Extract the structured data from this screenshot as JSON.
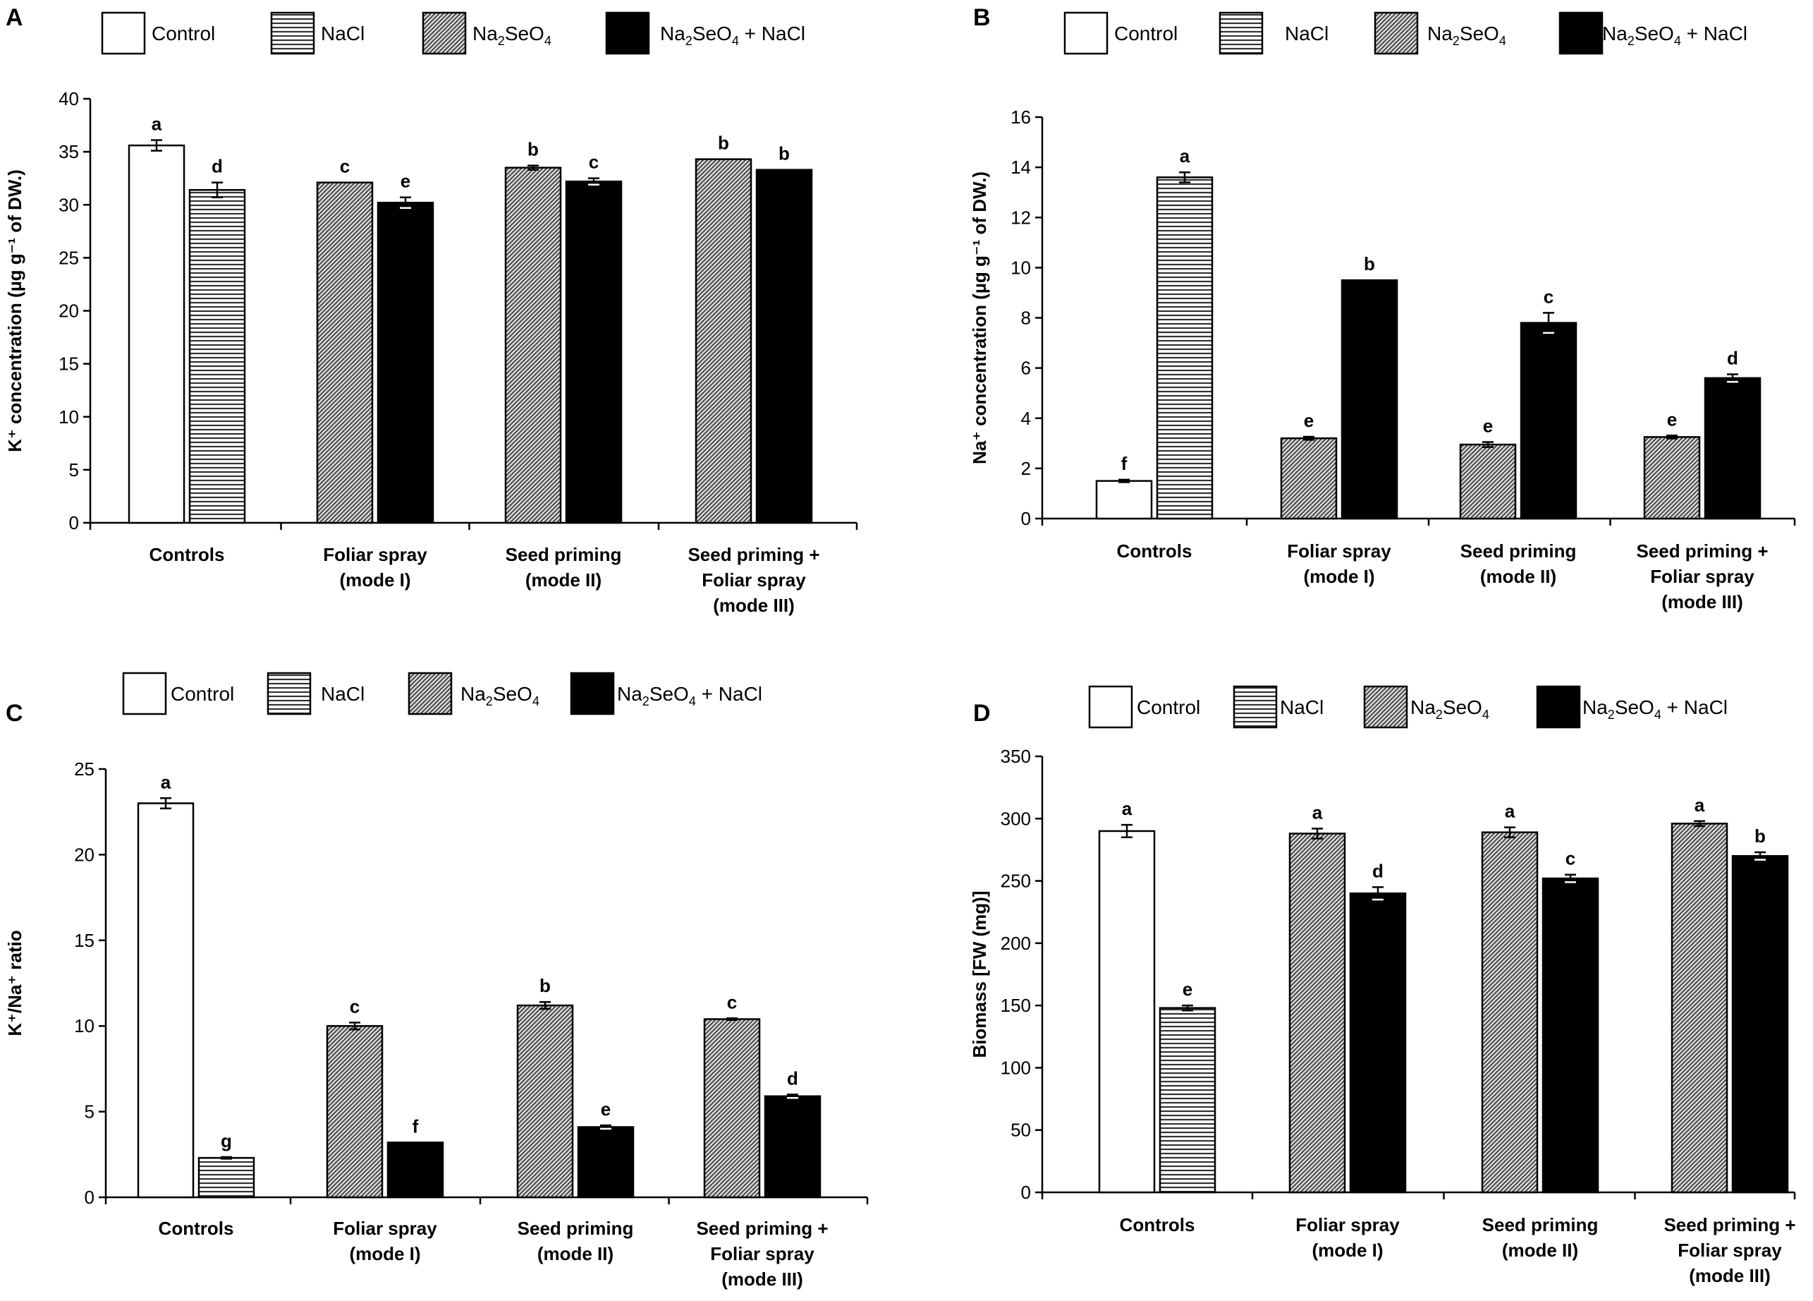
{
  "colors": {
    "control": "#ffffff",
    "nacl_line": "#333333",
    "naseo4_line": "#555555",
    "combined": "#000000",
    "axis": "#000000"
  },
  "legend": [
    {
      "key": "control",
      "label": "Control",
      "pattern": "white"
    },
    {
      "key": "nacl",
      "label": "NaCl",
      "pattern": "hlines"
    },
    {
      "key": "naseo4",
      "label_parts": [
        "Na",
        "2",
        "SeO",
        "4",
        ""
      ],
      "pattern": "diag"
    },
    {
      "key": "combined",
      "label_parts": [
        "Na",
        "2",
        "SeO",
        "4",
        " + NaCl"
      ],
      "pattern": "black"
    }
  ],
  "chart_data": [
    {
      "panel": "A",
      "type": "bar",
      "ylabel": "K⁺ concentration (µg g⁻¹ of DW.)",
      "ylim": [
        0,
        40
      ],
      "yticks": [
        0,
        5,
        10,
        15,
        20,
        25,
        30,
        35,
        40
      ],
      "groups": [
        {
          "label_lines": [
            "Controls"
          ],
          "bars": [
            {
              "series": "control",
              "value": 35.6,
              "error": 0.5,
              "letter": "a"
            },
            {
              "series": "nacl",
              "value": 31.4,
              "error": 0.7,
              "letter": "d"
            }
          ]
        },
        {
          "label_lines": [
            "Foliar spray",
            "(mode I)"
          ],
          "bars": [
            {
              "series": "naseo4",
              "value": 32.1,
              "error": 0,
              "letter": "c"
            },
            {
              "series": "combined",
              "value": 30.2,
              "error": 0.5,
              "letter": "e"
            }
          ]
        },
        {
          "label_lines": [
            "Seed priming",
            "(mode II)"
          ],
          "bars": [
            {
              "series": "naseo4",
              "value": 33.5,
              "error": 0.2,
              "letter": "b"
            },
            {
              "series": "combined",
              "value": 32.2,
              "error": 0.3,
              "letter": "c"
            }
          ]
        },
        {
          "label_lines": [
            "Seed priming +",
            "Foliar spray",
            "(mode III)"
          ],
          "bars": [
            {
              "series": "naseo4",
              "value": 34.3,
              "error": 0,
              "letter": "b"
            },
            {
              "series": "combined",
              "value": 33.3,
              "error": 0,
              "letter": "b"
            }
          ]
        }
      ]
    },
    {
      "panel": "B",
      "type": "bar",
      "ylabel": "Na⁺ concentration (µg g⁻¹ of DW.)",
      "ylim": [
        0,
        16
      ],
      "yticks": [
        0,
        2,
        4,
        6,
        8,
        10,
        12,
        14,
        16
      ],
      "groups": [
        {
          "label_lines": [
            "Controls"
          ],
          "bars": [
            {
              "series": "control",
              "value": 1.5,
              "error": 0.05,
              "letter": "f"
            },
            {
              "series": "nacl",
              "value": 13.6,
              "error": 0.2,
              "letter": "a"
            }
          ]
        },
        {
          "label_lines": [
            "Foliar spray",
            "(mode I)"
          ],
          "bars": [
            {
              "series": "naseo4",
              "value": 3.2,
              "error": 0.06,
              "letter": "e"
            },
            {
              "series": "combined",
              "value": 9.5,
              "error": 0,
              "letter": "b"
            }
          ]
        },
        {
          "label_lines": [
            "Seed priming",
            "(mode II)"
          ],
          "bars": [
            {
              "series": "naseo4",
              "value": 2.95,
              "error": 0.1,
              "letter": "e"
            },
            {
              "series": "combined",
              "value": 7.8,
              "error": 0.4,
              "letter": "c"
            }
          ]
        },
        {
          "label_lines": [
            "Seed priming +",
            "Foliar spray",
            "(mode III)"
          ],
          "bars": [
            {
              "series": "naseo4",
              "value": 3.25,
              "error": 0.06,
              "letter": "e"
            },
            {
              "series": "combined",
              "value": 5.6,
              "error": 0.15,
              "letter": "d"
            }
          ]
        }
      ]
    },
    {
      "panel": "C",
      "type": "bar",
      "ylabel": "K⁺/Na⁺ ratio",
      "ylim": [
        0,
        25
      ],
      "yticks": [
        0,
        5,
        10,
        15,
        20,
        25
      ],
      "groups": [
        {
          "label_lines": [
            "Controls"
          ],
          "bars": [
            {
              "series": "control",
              "value": 23.0,
              "error": 0.3,
              "letter": "a"
            },
            {
              "series": "nacl",
              "value": 2.3,
              "error": 0.05,
              "letter": "g"
            }
          ]
        },
        {
          "label_lines": [
            "Foliar spray",
            "(mode I)"
          ],
          "bars": [
            {
              "series": "naseo4",
              "value": 10.0,
              "error": 0.2,
              "letter": "c"
            },
            {
              "series": "combined",
              "value": 3.2,
              "error": 0,
              "letter": "f"
            }
          ]
        },
        {
          "label_lines": [
            "Seed priming",
            "(mode II)"
          ],
          "bars": [
            {
              "series": "naseo4",
              "value": 11.2,
              "error": 0.2,
              "letter": "b"
            },
            {
              "series": "combined",
              "value": 4.1,
              "error": 0.1,
              "letter": "e"
            }
          ]
        },
        {
          "label_lines": [
            "Seed priming +",
            "Foliar spray",
            "(mode III)"
          ],
          "bars": [
            {
              "series": "naseo4",
              "value": 10.4,
              "error": 0.05,
              "letter": "c"
            },
            {
              "series": "combined",
              "value": 5.9,
              "error": 0.1,
              "letter": "d"
            }
          ]
        }
      ]
    },
    {
      "panel": "D",
      "type": "bar",
      "ylabel": "Biomass [FW (mg)]",
      "ylim": [
        0,
        350
      ],
      "yticks": [
        0,
        50,
        100,
        150,
        200,
        250,
        300,
        350
      ],
      "groups": [
        {
          "label_lines": [
            "Controls"
          ],
          "bars": [
            {
              "series": "control",
              "value": 290,
              "error": 5,
              "letter": "a"
            },
            {
              "series": "nacl",
              "value": 148,
              "error": 2,
              "letter": "e"
            }
          ]
        },
        {
          "label_lines": [
            "Foliar spray",
            "(mode I)"
          ],
          "bars": [
            {
              "series": "naseo4",
              "value": 288,
              "error": 4,
              "letter": "a"
            },
            {
              "series": "combined",
              "value": 240,
              "error": 5,
              "letter": "d"
            }
          ]
        },
        {
          "label_lines": [
            "Seed priming",
            "(mode II)"
          ],
          "bars": [
            {
              "series": "naseo4",
              "value": 289,
              "error": 4,
              "letter": "a"
            },
            {
              "series": "combined",
              "value": 252,
              "error": 3,
              "letter": "c"
            }
          ]
        },
        {
          "label_lines": [
            "Seed priming +",
            "Foliar spray",
            "(mode III)"
          ],
          "bars": [
            {
              "series": "naseo4",
              "value": 296,
              "error": 2,
              "letter": "a"
            },
            {
              "series": "combined",
              "value": 270,
              "error": 3,
              "letter": "b"
            }
          ]
        }
      ]
    }
  ]
}
